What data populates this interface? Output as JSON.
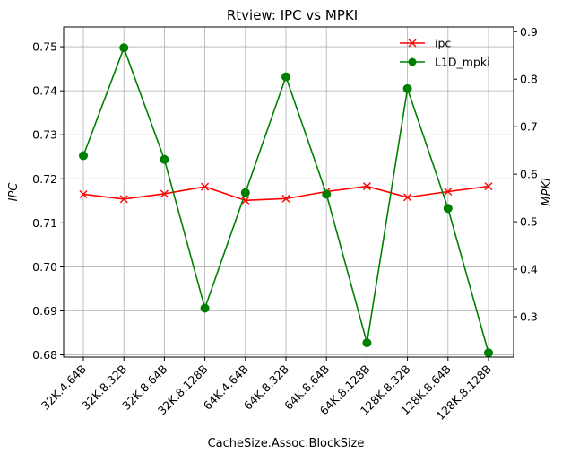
{
  "chart_data": {
    "type": "line",
    "title": "Rtview: IPC vs MPKI",
    "xlabel": "CacheSize.Assoc.BlockSize",
    "ylabel_left": "IPC",
    "ylabel_right": "MPKI",
    "categories": [
      "32K.4.64B",
      "32K.8.32B",
      "32K.8.64B",
      "32K.8.128B",
      "64K.4.64B",
      "64K.8.32B",
      "64K.8.64B",
      "64K.8.128B",
      "128K.8.32B",
      "128K.8.64B",
      "128K.8.128B"
    ],
    "ylim_left": [
      0.6795,
      0.7545
    ],
    "ylim_right": [
      0.215,
      0.91
    ],
    "yticks_left": [
      0.68,
      0.69,
      0.7,
      0.71,
      0.72,
      0.73,
      0.74,
      0.75
    ],
    "yticks_right": [
      0.3,
      0.4,
      0.5,
      0.6,
      0.7,
      0.8,
      0.9
    ],
    "grid": true,
    "legend_position": "top-right",
    "series": [
      {
        "name": "ipc",
        "axis": "left",
        "color": "#ff0000",
        "marker": "x",
        "values": [
          0.7165,
          0.7154,
          0.7166,
          0.7182,
          0.7151,
          0.7155,
          0.7171,
          0.7183,
          0.7158,
          0.7171,
          0.7183
        ]
      },
      {
        "name": "L1D_mpki",
        "axis": "right",
        "color": "#008000",
        "marker": "o",
        "values": [
          0.639,
          0.866,
          0.631,
          0.318,
          0.561,
          0.805,
          0.558,
          0.245,
          0.78,
          0.528,
          0.224
        ]
      }
    ]
  }
}
